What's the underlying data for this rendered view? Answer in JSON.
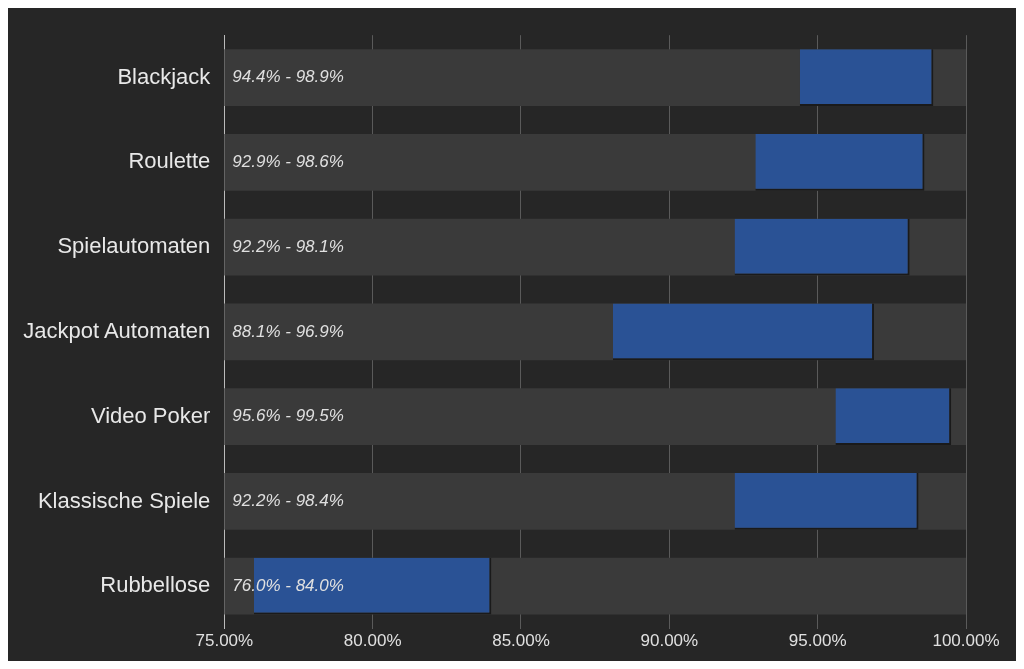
{
  "chart_data": {
    "type": "bar",
    "orientation": "horizontal",
    "categories": [
      "Blackjack",
      "Roulette",
      "Spielautomaten",
      "Jackpot Automaten",
      "Video Poker",
      "Klassische Spiele",
      "Rubbellose"
    ],
    "base": [
      94.4,
      92.9,
      92.2,
      88.1,
      95.6,
      92.2,
      76.0
    ],
    "values": [
      4.5,
      5.7,
      5.9,
      8.8,
      3.9,
      6.2,
      8.0
    ],
    "annotations": [
      "94.4% - 98.9%",
      "92.9% - 98.6%",
      "92.2% - 98.1%",
      "88.1% - 96.9%",
      "95.6% - 99.5%",
      "92.2% - 98.4%",
      "76.0% - 84.0%"
    ],
    "color": "#2a5295",
    "xlim": [
      75,
      100
    ],
    "xticks": [
      {
        "value": 75,
        "label": "75.00%"
      },
      {
        "value": 80,
        "label": "80.00%"
      },
      {
        "value": 85,
        "label": "85.00%"
      },
      {
        "value": 90,
        "label": "90.00%"
      },
      {
        "value": 95,
        "label": "95.00%"
      },
      {
        "value": 100,
        "label": "100.00%"
      }
    ],
    "grid": "x",
    "legend": false
  }
}
